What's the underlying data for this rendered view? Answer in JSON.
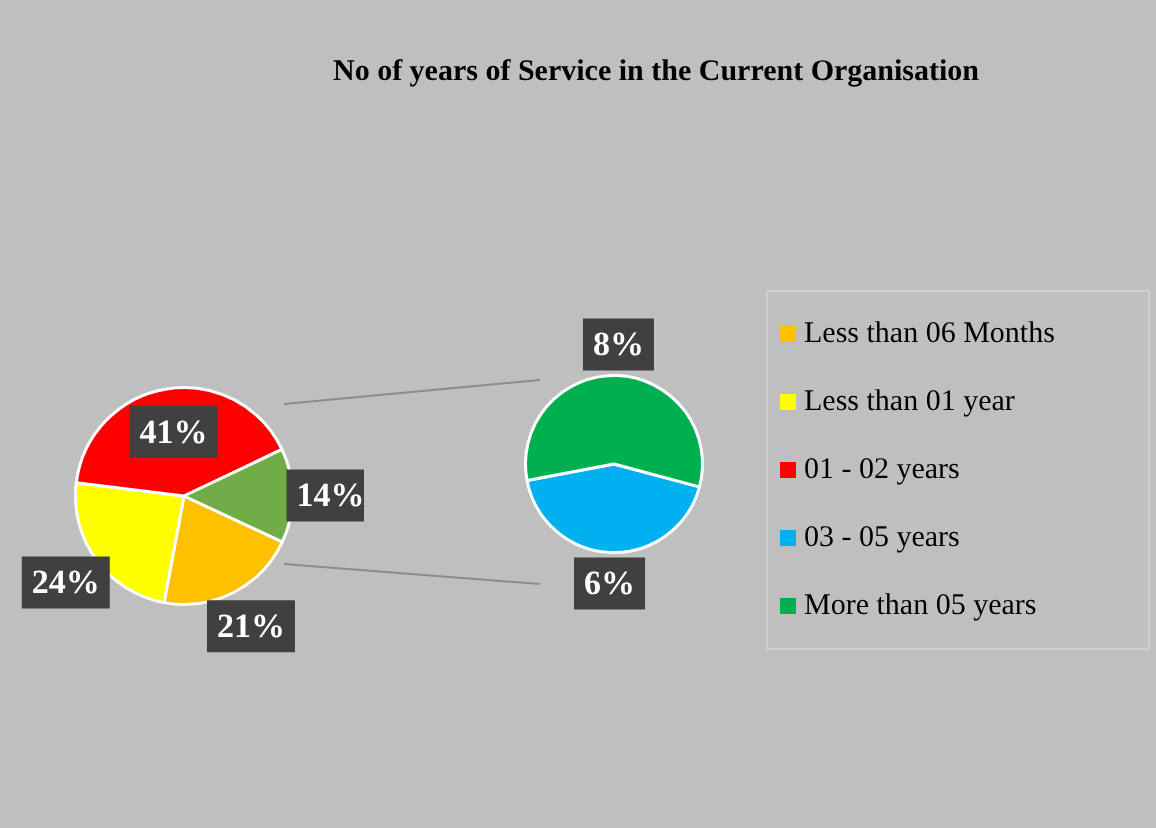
{
  "chart_data": [
    {
      "type": "pie",
      "categories": [
        "Less than 06 Months",
        "Less than 01 year",
        "01 - 02 years",
        null
      ],
      "values": [
        21,
        24,
        41,
        14
      ],
      "colors": [
        "#ffc000",
        "#ffff00",
        "#ff0000",
        "#70ad47"
      ],
      "value_labels": [
        "21%",
        "24%",
        "41%",
        "14%"
      ],
      "legend": "right"
    },
    {
      "type": "pie",
      "title": "No of years of Service in  the Current Organisation",
      "categories": [
        "03 - 05 years",
        "More than 05 years"
      ],
      "values": [
        6,
        8
      ],
      "colors": [
        "#00b0f0",
        "#00b050"
      ],
      "value_labels": [
        "6%",
        "8%"
      ],
      "legend": "right"
    }
  ]
}
